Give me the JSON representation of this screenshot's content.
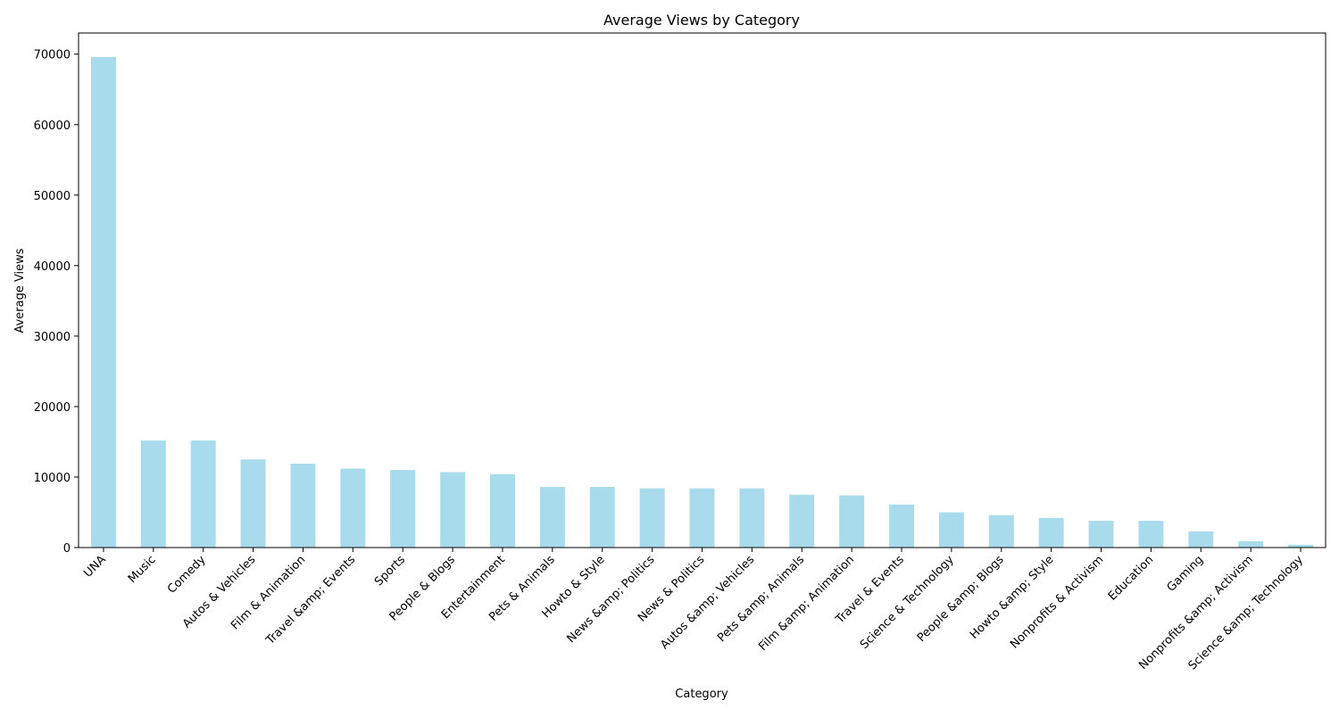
{
  "chart_data": {
    "type": "bar",
    "title": "Average Views by Category",
    "xlabel": "Category",
    "ylabel": "Average Views",
    "ylim": [
      0,
      73000
    ],
    "yticks": [
      0,
      10000,
      20000,
      30000,
      40000,
      50000,
      60000,
      70000
    ],
    "grid": false,
    "bar_color": "#a8dbec",
    "categories": [
      "UNA",
      "Music",
      "Comedy",
      "Autos & Vehicles",
      "Film & Animation",
      "Travel &amp; Events",
      "Sports",
      "People & Blogs",
      "Entertainment",
      "Pets & Animals",
      "Howto & Style",
      "News &amp; Politics",
      "News & Politics",
      "Autos &amp; Vehicles",
      "Pets &amp; Animals",
      "Film &amp; Animation",
      "Travel & Events",
      "Science & Technology",
      "People &amp; Blogs",
      "Howto &amp; Style",
      "Nonprofits & Activism",
      "Education",
      "Gaming",
      "Nonprofits &amp; Activism",
      "Science &amp; Technology"
    ],
    "values": [
      69600,
      15200,
      15200,
      12500,
      11900,
      11200,
      11000,
      10700,
      10400,
      8600,
      8600,
      8400,
      8400,
      8400,
      7500,
      7400,
      6100,
      5000,
      4600,
      4200,
      3800,
      3800,
      2300,
      900,
      400
    ]
  }
}
